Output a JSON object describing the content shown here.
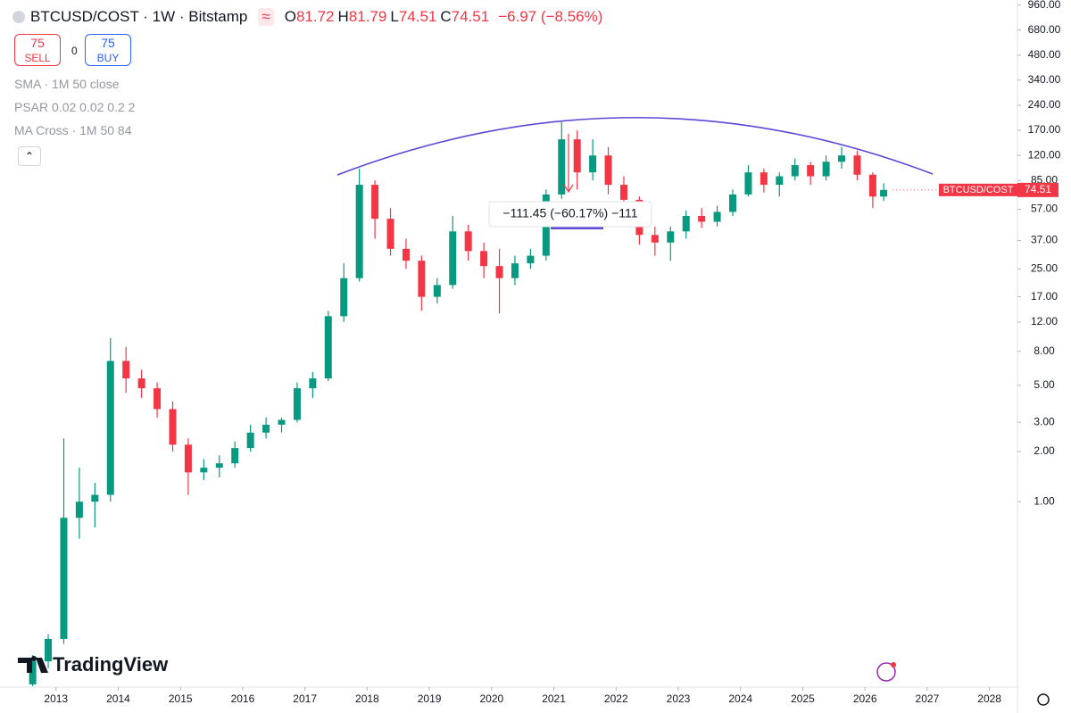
{
  "header": {
    "symbol": "BTCUSD/COST · 1W · Bitstamp",
    "ohlc": [
      {
        "key": "O",
        "value": "81.72"
      },
      {
        "key": "H",
        "value": "81.79"
      },
      {
        "key": "L",
        "value": "74.51"
      },
      {
        "key": "C",
        "value": "74.51"
      }
    ],
    "change": "−6.97 (−8.56%)"
  },
  "trade": {
    "sell_price": "75",
    "sell": "SELL",
    "spread": "0",
    "buy_price": "75",
    "buy": "BUY"
  },
  "indicators": [
    "SMA · 1M 50 close",
    "PSAR 0.02 0.02 0.2 2",
    "MA Cross · 1M 50 84"
  ],
  "logo": "TradingView",
  "chart_data": {
    "type": "candlestick",
    "log_scale": true,
    "grid": false,
    "up_color": "#089981",
    "down_color": "#f23645",
    "x": [
      2012.625,
      2012.875,
      2013.125,
      2013.375,
      2013.625,
      2013.875,
      2014.125,
      2014.375,
      2014.625,
      2014.875,
      2015.125,
      2015.375,
      2015.625,
      2015.875,
      2016.125,
      2016.375,
      2016.625,
      2016.875,
      2017.125,
      2017.375,
      2017.625,
      2017.875,
      2018.125,
      2018.375,
      2018.625,
      2018.875,
      2019.125,
      2019.375,
      2019.625,
      2019.875,
      2020.125,
      2020.375,
      2020.625,
      2020.875,
      2021.125,
      2021.375,
      2021.625,
      2021.875,
      2022.125,
      2022.375,
      2022.625,
      2022.875,
      2023.125,
      2023.375,
      2023.625,
      2023.875,
      2024.125,
      2024.375,
      2024.625,
      2024.875,
      2025.125,
      2025.375,
      2025.625,
      2025.875,
      2026.125,
      2026.3
    ],
    "open": [
      0.08,
      0.11,
      0.15,
      0.8,
      1.0,
      1.1,
      7.0,
      5.5,
      4.8,
      3.6,
      2.2,
      1.5,
      1.6,
      1.7,
      2.1,
      2.6,
      2.9,
      3.1,
      4.8,
      5.5,
      13,
      22,
      80,
      50,
      33,
      28,
      17,
      20,
      42,
      32,
      26,
      22,
      27,
      30,
      70,
      150,
      95,
      120,
      80,
      65,
      40,
      36,
      42,
      52,
      48,
      55,
      70,
      95,
      80,
      90,
      105,
      90,
      110,
      120,
      92,
      68
    ],
    "high": [
      0.12,
      0.16,
      2.4,
      1.6,
      1.3,
      9.6,
      8.5,
      6.2,
      5.2,
      4.0,
      2.4,
      1.8,
      1.9,
      2.3,
      2.9,
      3.2,
      3.2,
      5.2,
      6.0,
      14,
      27,
      100,
      85,
      58,
      38,
      30,
      22,
      52,
      46,
      36,
      33,
      30,
      33,
      75,
      190,
      170,
      150,
      135,
      90,
      68,
      45,
      45,
      56,
      58,
      60,
      75,
      105,
      100,
      95,
      115,
      110,
      120,
      135,
      128,
      95,
      81.79
    ],
    "low": [
      0.078,
      0.1,
      0.14,
      0.6,
      0.7,
      1.0,
      4.5,
      4.2,
      3.2,
      2.0,
      1.1,
      1.35,
      1.4,
      1.6,
      2.0,
      2.4,
      2.6,
      3.0,
      4.2,
      5.3,
      12,
      21,
      38,
      30,
      25,
      14,
      15.5,
      19,
      28,
      22,
      13.5,
      20,
      25,
      28,
      66,
      75,
      85,
      70,
      55,
      35,
      30,
      28,
      38,
      44,
      45,
      52,
      68,
      72,
      68,
      85,
      80,
      85,
      100,
      85,
      58,
      64
    ],
    "close": [
      0.11,
      0.15,
      0.8,
      1.0,
      1.1,
      7.0,
      5.5,
      4.8,
      3.6,
      2.2,
      1.5,
      1.6,
      1.7,
      2.1,
      2.6,
      2.9,
      3.1,
      4.8,
      5.5,
      13,
      22,
      80,
      50,
      33,
      28,
      17,
      20,
      42,
      32,
      26,
      22,
      27,
      30,
      70,
      150,
      95,
      120,
      80,
      65,
      40,
      36,
      42,
      52,
      48,
      55,
      70,
      95,
      80,
      90,
      105,
      90,
      110,
      120,
      92,
      68,
      74.51
    ],
    "xlim": [
      2012.1,
      2028.45
    ],
    "xticks": [
      2013,
      2014,
      2015,
      2016,
      2017,
      2018,
      2019,
      2020,
      2021,
      2022,
      2023,
      2024,
      2025,
      2026,
      2027,
      2028
    ],
    "ylim": [
      0.077,
      1030
    ],
    "yticks": [
      {
        "value": 1,
        "label": "1.00"
      },
      {
        "value": 2,
        "label": "2.00"
      },
      {
        "value": 3,
        "label": "3.00"
      },
      {
        "value": 5,
        "label": "5.00"
      },
      {
        "value": 8,
        "label": "8.00"
      },
      {
        "value": 12,
        "label": "12.00"
      },
      {
        "value": 17,
        "label": "17.00"
      },
      {
        "value": 25,
        "label": "25.00"
      },
      {
        "value": 37,
        "label": "37.00"
      },
      {
        "value": 57,
        "label": "57.00"
      },
      {
        "value": 85,
        "label": "85.00"
      },
      {
        "value": 120,
        "label": "120.00"
      },
      {
        "value": 170,
        "label": "170.00"
      },
      {
        "value": 240,
        "label": "240.00"
      },
      {
        "value": 340,
        "label": "340.00"
      },
      {
        "value": 480,
        "label": "480.00"
      },
      {
        "value": 680,
        "label": "680.00"
      },
      {
        "value": 960,
        "label": "960.00"
      }
    ],
    "last_price": {
      "name": "BTCUSD/COST",
      "value": 74.51
    },
    "annotation": "−111.45 (−60.17%) −111"
  }
}
